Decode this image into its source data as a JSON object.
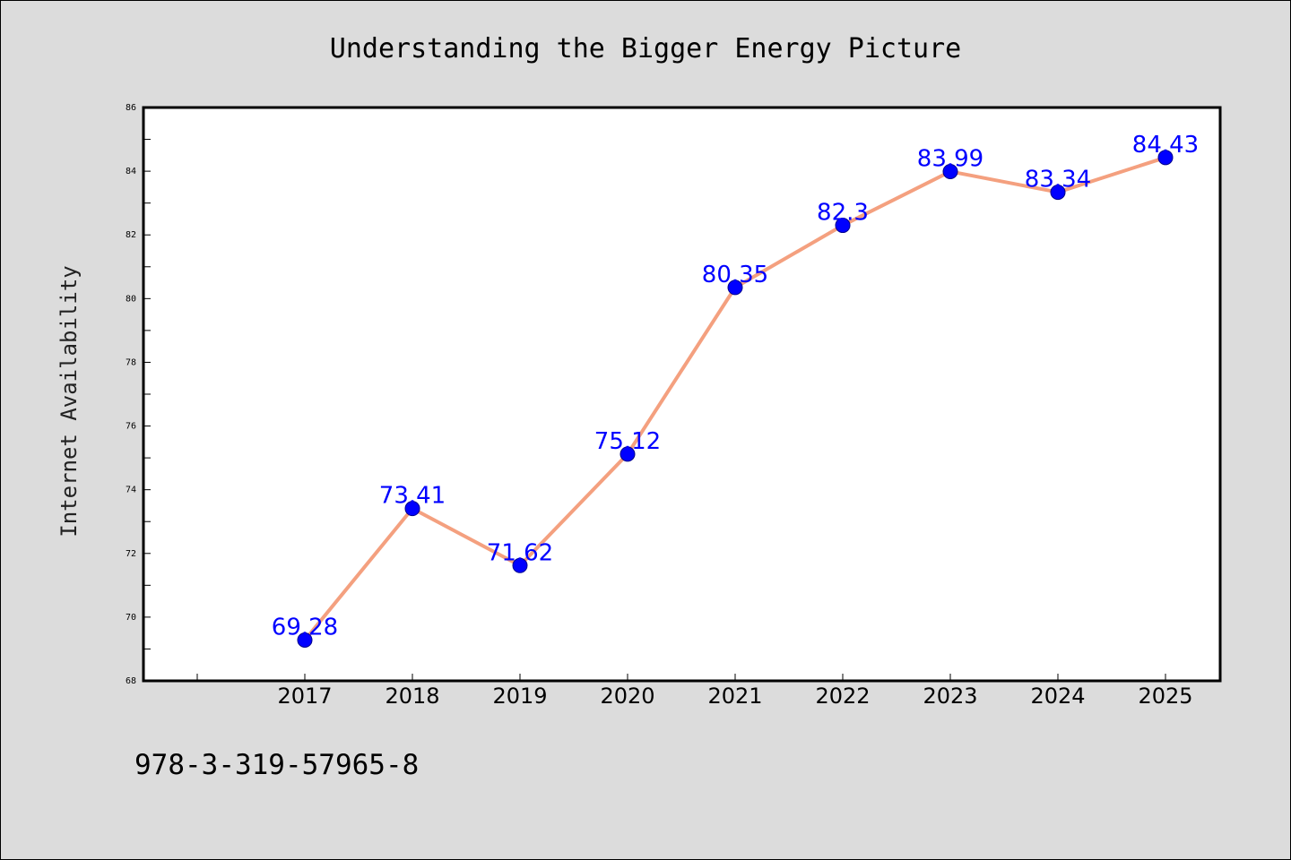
{
  "footer_code": "978-3-319-57965-8",
  "chart_data": {
    "type": "line",
    "title": "Understanding the Bigger Energy Picture",
    "xlabel": "",
    "ylabel": "Internet Availability",
    "categories": [
      "2017",
      "2018",
      "2019",
      "2020",
      "2021",
      "2022",
      "2023",
      "2024",
      "2025"
    ],
    "series": [
      {
        "values": [
          69.28,
          73.41,
          71.62,
          75.12,
          80.35,
          82.3,
          83.99,
          83.34,
          84.43
        ],
        "data_labels": [
          "69.28",
          "73.41",
          "71.62",
          "75.12",
          "80.35",
          "82.3",
          "83.99",
          "83.34",
          "84.43"
        ],
        "line_color": "#f4a07f",
        "marker_color": "#0000ff",
        "label_color": "#0000ff"
      }
    ],
    "ylim": [
      68,
      86
    ],
    "yticks": [
      68,
      70,
      72,
      74,
      76,
      78,
      80,
      82,
      84,
      86
    ],
    "ytick_labels": [
      "68",
      "70",
      "72",
      "74",
      "76",
      "78",
      "80",
      "82",
      "84",
      "86"
    ],
    "grid": false,
    "background_color": "#dcdcdc",
    "plot_background_color": "#ffffff"
  }
}
